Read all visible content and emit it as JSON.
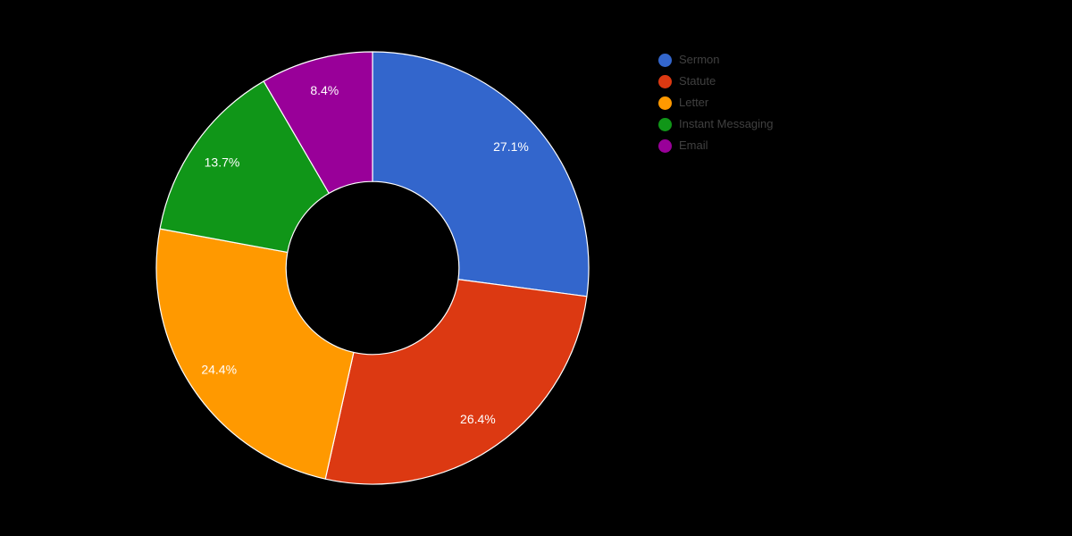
{
  "background": "#000000",
  "chart_data": {
    "type": "pie",
    "donut": true,
    "hole_ratio": 0.4,
    "title": "",
    "legend_position": "right",
    "slice_label_color": "#ffffff",
    "slice_stroke_color": "#ffffff",
    "legend_text_color": "#404040",
    "slices": [
      {
        "label": "Sermon",
        "value": 27.1,
        "pct_label": "27.1%",
        "color": "#3366CC"
      },
      {
        "label": "Statute",
        "value": 26.4,
        "pct_label": "26.4%",
        "color": "#DC3912"
      },
      {
        "label": "Letter",
        "value": 24.4,
        "pct_label": "24.4%",
        "color": "#FF9900"
      },
      {
        "label": "Instant Messaging",
        "value": 13.7,
        "pct_label": "13.7%",
        "color": "#109618"
      },
      {
        "label": "Email",
        "value": 8.4,
        "pct_label": "8.4%",
        "color": "#990099"
      }
    ]
  }
}
